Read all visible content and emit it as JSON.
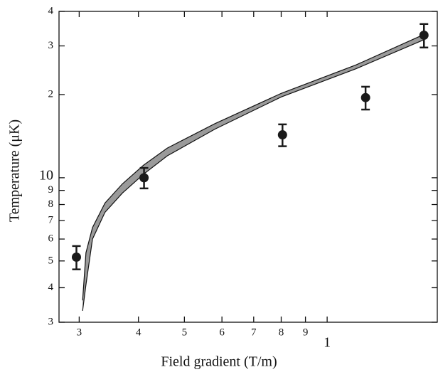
{
  "chart_data": {
    "type": "scatter",
    "x_label": "Field gradient (T/m)",
    "y_label": "Temperature (μK)",
    "log_x": true,
    "log_y": true,
    "xlim": [
      2.72,
      17.07
    ],
    "ylim": [
      3,
      40
    ],
    "xticks": [
      3,
      4,
      5,
      6,
      7,
      8,
      9,
      {
        "value": 10,
        "label": "1"
      }
    ],
    "yticks": [
      3,
      4,
      5,
      6,
      7,
      8,
      9,
      10,
      {
        "value": 20,
        "label": "2"
      },
      {
        "value": 30,
        "label": "3"
      },
      {
        "value": 40,
        "label": "4"
      }
    ],
    "series": [
      {
        "x": [
          2.96,
          4.11,
          8.05,
          12.05,
          16.0
        ],
        "values": [
          5.16,
          10.0,
          14.3,
          19.5,
          32.8
        ],
        "errors": [
          0.5,
          0.85,
          1.3,
          1.85,
          3.2
        ],
        "color": "#1a1a1a"
      }
    ],
    "band": {
      "x": [
        3.05,
        3.1,
        3.2,
        3.4,
        3.7,
        4.1,
        4.6,
        5.8,
        8.0,
        11.5,
        16.0
      ],
      "upper": [
        3.6,
        5.35,
        6.6,
        8.1,
        9.5,
        11.1,
        12.8,
        15.7,
        20.2,
        25.6,
        33.0
      ],
      "lower": [
        3.3,
        4.1,
        6.0,
        7.5,
        8.8,
        10.3,
        12.0,
        15.0,
        19.6,
        24.8,
        31.6
      ],
      "color": "#9a9a9a"
    }
  }
}
